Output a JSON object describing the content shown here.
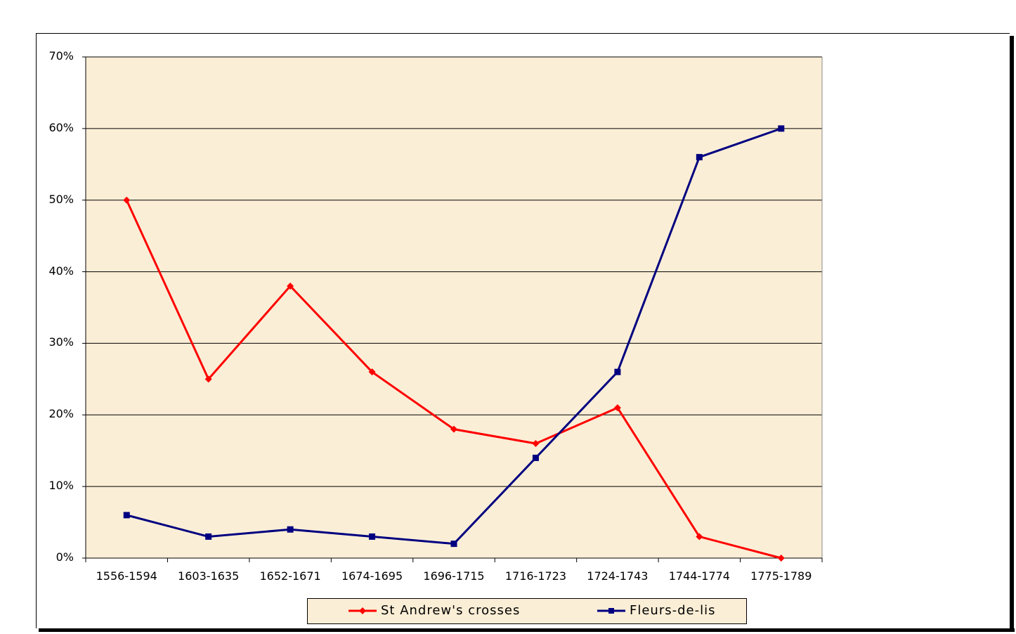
{
  "chart_data": {
    "type": "line",
    "title": "",
    "xlabel": "",
    "ylabel": "",
    "categories": [
      "1556-1594",
      "1603-1635",
      "1652-1671",
      "1674-1695",
      "1696-1715",
      "1716-1723",
      "1724-1743",
      "1744-1774",
      "1775-1789"
    ],
    "series": [
      {
        "name": "St Andrew's crosses",
        "color": "#ff0000",
        "marker": "diamond",
        "values": [
          50,
          25,
          38,
          26,
          18,
          16,
          21,
          3,
          0
        ]
      },
      {
        "name": "Fleurs-de-lis",
        "color": "#000080",
        "marker": "square",
        "values": [
          6,
          3,
          4,
          3,
          2,
          14,
          26,
          56,
          60
        ]
      }
    ],
    "ylim": [
      0,
      70
    ],
    "yticks": [
      "0%",
      "10%",
      "20%",
      "30%",
      "40%",
      "50%",
      "60%",
      "70%"
    ],
    "grid": true,
    "legend_position": "bottom",
    "plot_background": "#fbeed6"
  },
  "legend": {
    "items": [
      {
        "label": "St Andrew's crosses"
      },
      {
        "label": "Fleurs-de-lis"
      }
    ]
  }
}
